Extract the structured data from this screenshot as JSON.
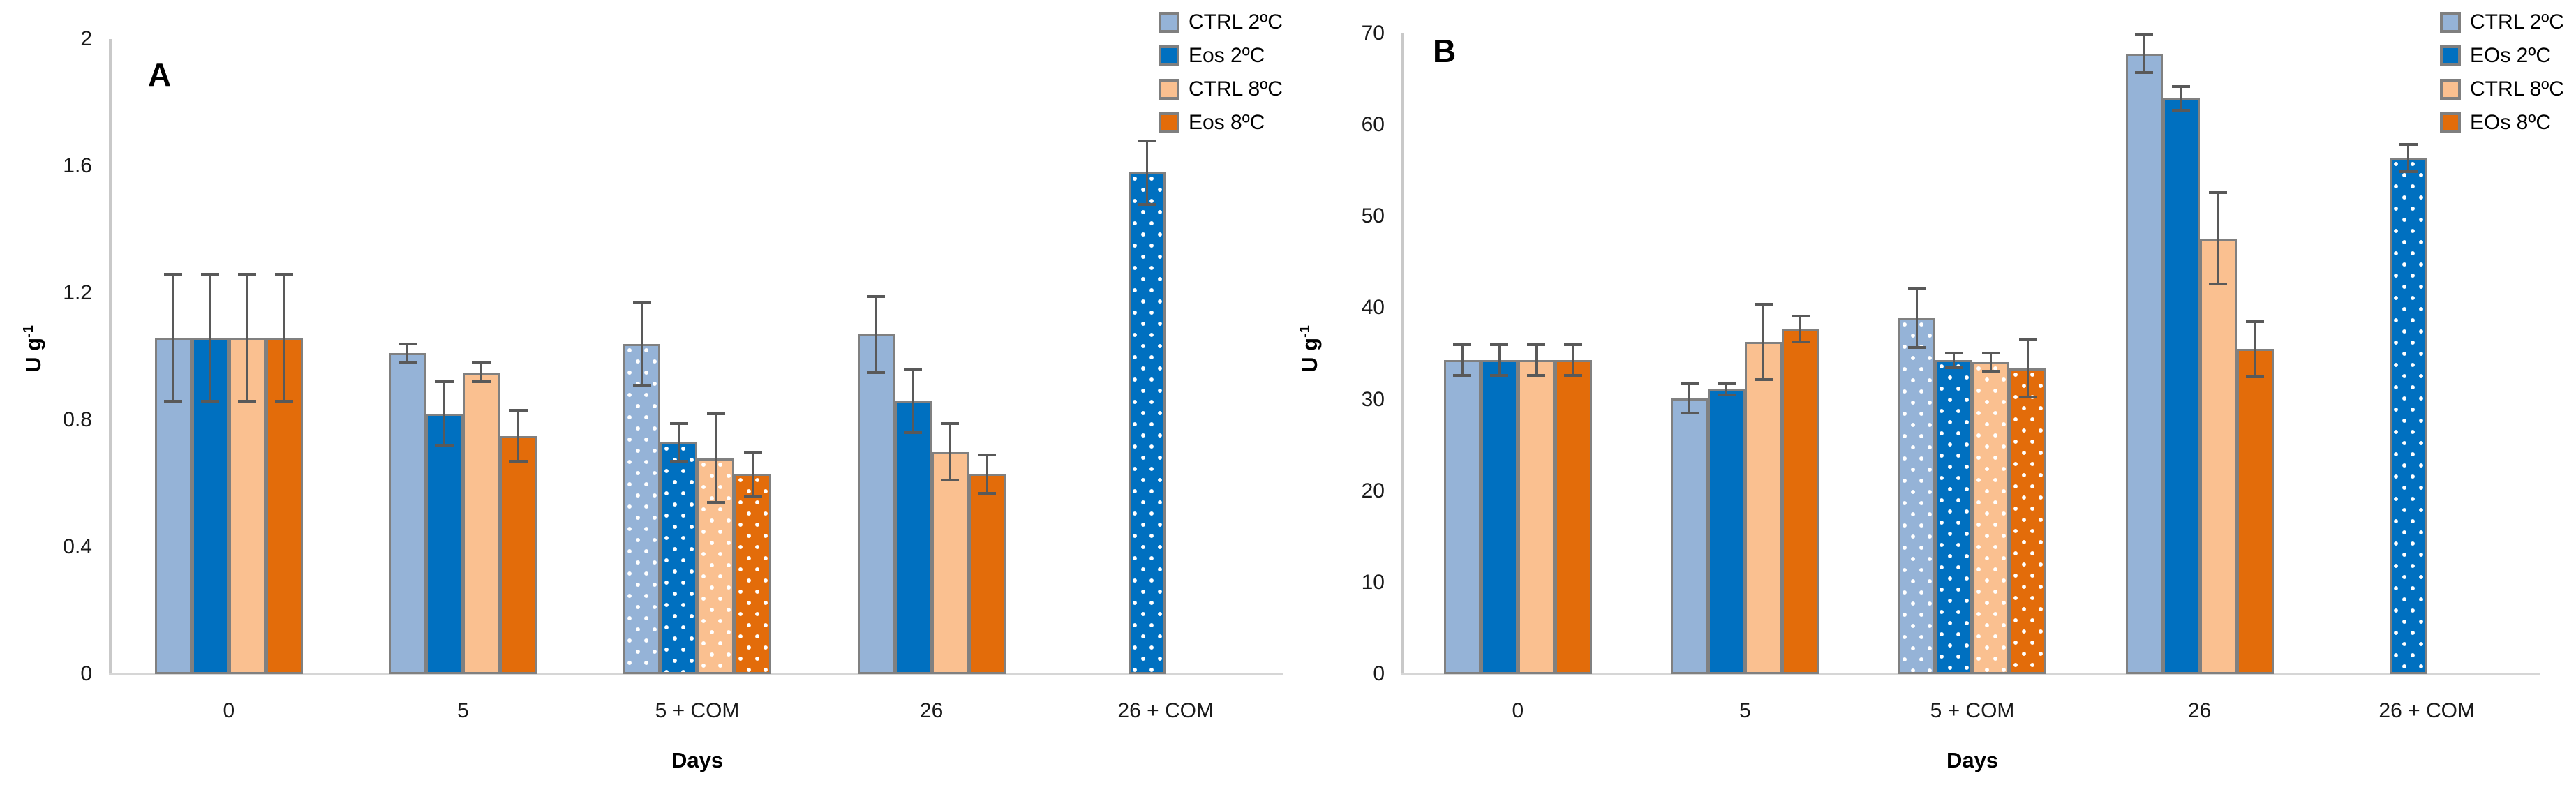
{
  "page": {
    "background": "#ffffff"
  },
  "styles": {
    "bar_border": "#808080",
    "error_bar": "#595959",
    "axis_line": "#c9c9c9",
    "text": "#000000"
  },
  "chart_data": [
    {
      "type": "bar",
      "panel_label": "A",
      "xlabel": "Days",
      "ylabel_base": "U g",
      "ylabel_sup": "-1",
      "ylim": [
        0,
        2
      ],
      "ytick_values": [
        0,
        0.4,
        0.8,
        1.2,
        1.6,
        2
      ],
      "ytick_labels": [
        "0",
        "0.4",
        "0.8",
        "1.2",
        "1.6",
        "2"
      ],
      "categories": [
        "0",
        "5",
        "5 + COM",
        "26",
        "26 + COM"
      ],
      "dotted_category_indexes": [
        2,
        4
      ],
      "grid": false,
      "legend_position": "top-right",
      "series": [
        {
          "name": "CTRL 2ºC",
          "color": "#95B3D7",
          "values": [
            1.06,
            1.01,
            1.04,
            1.07,
            null
          ],
          "errors": [
            0.2,
            0.03,
            0.13,
            0.12,
            null
          ]
        },
        {
          "name": "Eos 2ºC",
          "color": "#0070C0",
          "values": [
            1.06,
            0.82,
            0.73,
            0.86,
            1.58
          ],
          "errors": [
            0.2,
            0.1,
            0.06,
            0.1,
            0.1
          ]
        },
        {
          "name": "CTRL 8ºC",
          "color": "#FAC090",
          "values": [
            1.06,
            0.95,
            0.68,
            0.7,
            null
          ],
          "errors": [
            0.2,
            0.03,
            0.14,
            0.09,
            null
          ]
        },
        {
          "name": "Eos 8ºC",
          "color": "#E36C0A",
          "values": [
            1.06,
            0.75,
            0.63,
            0.63,
            null
          ],
          "errors": [
            0.2,
            0.08,
            0.07,
            0.06,
            null
          ]
        }
      ]
    },
    {
      "type": "bar",
      "panel_label": "B",
      "xlabel": "Days",
      "ylabel_base": "U g",
      "ylabel_sup": "-1",
      "ylim": [
        0,
        70
      ],
      "ytick_values": [
        0,
        10,
        20,
        30,
        40,
        50,
        60,
        70
      ],
      "ytick_labels": [
        "0",
        "10",
        "20",
        "30",
        "40",
        "50",
        "60",
        "70"
      ],
      "categories": [
        "0",
        "5",
        "5 + COM",
        "26",
        "26 + COM"
      ],
      "dotted_category_indexes": [
        2,
        4
      ],
      "grid": false,
      "legend_position": "top-right",
      "series": [
        {
          "name": "CTRL 2ºC",
          "color": "#95B3D7",
          "values": [
            34.3,
            30.1,
            38.9,
            67.8,
            null
          ],
          "errors": [
            1.7,
            1.6,
            3.2,
            2.1,
            null
          ]
        },
        {
          "name": "EOs 2ºC",
          "color": "#0070C0",
          "values": [
            34.3,
            31.1,
            34.3,
            62.9,
            56.4
          ],
          "errors": [
            1.7,
            0.6,
            0.8,
            1.3,
            1.5
          ]
        },
        {
          "name": "CTRL 8ºC",
          "color": "#FAC090",
          "values": [
            34.3,
            36.3,
            34.1,
            47.6,
            null
          ],
          "errors": [
            1.7,
            4.1,
            1.0,
            5.0,
            null
          ]
        },
        {
          "name": "EOs 8ºC",
          "color": "#E36C0A",
          "values": [
            34.3,
            37.7,
            33.4,
            35.5,
            null
          ],
          "errors": [
            1.7,
            1.4,
            3.1,
            3.0,
            null
          ]
        }
      ]
    }
  ]
}
